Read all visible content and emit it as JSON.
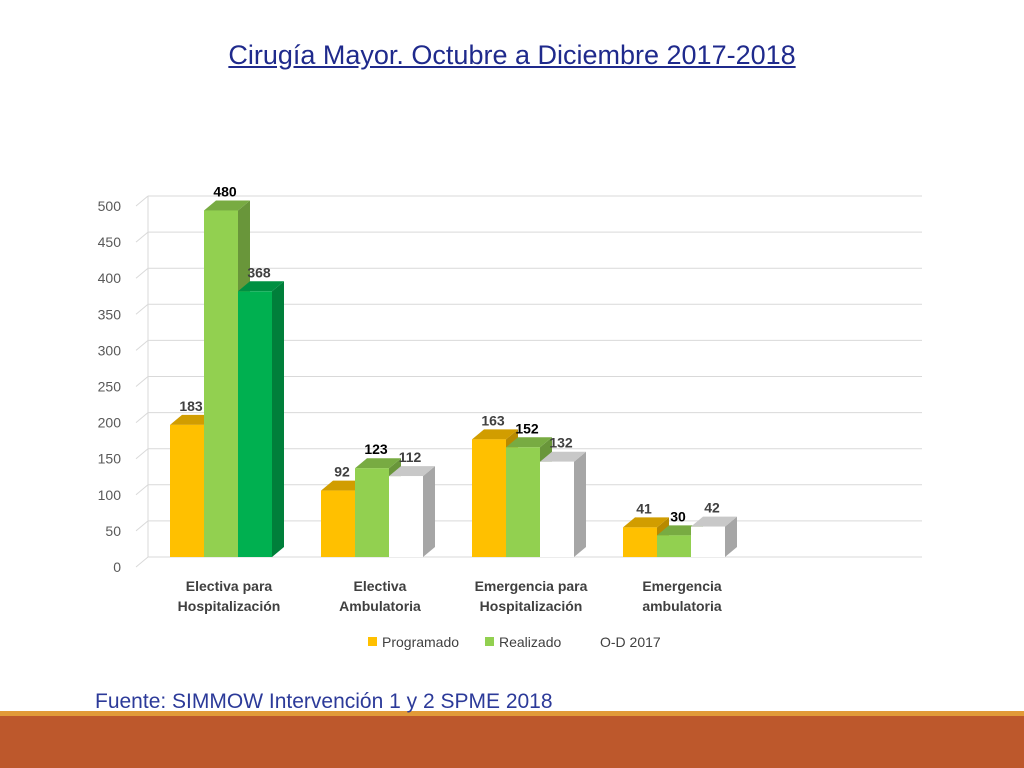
{
  "slide": {
    "title": "Cirugía Mayor. Octubre a Diciembre 2017-2018",
    "source": "Fuente: SIMMOW Intervención 1 y 2  SPME 2018"
  },
  "colors": {
    "programado": "#ffc000",
    "realizado": "#92d050",
    "od_first": "#00b050",
    "od_rest": "#ffffff",
    "title": "#1f2a8c",
    "bar_accent": "#e29a38",
    "bar_main": "#bd582c"
  },
  "chart_data": {
    "type": "bar",
    "title": "",
    "xlabel": "",
    "ylabel": "",
    "categories": [
      [
        "Electiva para",
        "Hospitalización"
      ],
      [
        "Electiva",
        "Ambulatoria"
      ],
      [
        "Emergencia para",
        "Hospitalización"
      ],
      [
        "Emergencia",
        "ambulatoria"
      ]
    ],
    "series": [
      {
        "name": "Programado",
        "values": [
          183,
          92,
          163,
          41
        ]
      },
      {
        "name": "Realizado",
        "values": [
          480,
          123,
          152,
          30
        ]
      },
      {
        "name": "O-D 2017",
        "values": [
          368,
          112,
          132,
          42
        ]
      }
    ],
    "ylim": [
      0,
      500
    ],
    "yticks": [
      0,
      50,
      100,
      150,
      200,
      250,
      300,
      350,
      400,
      450,
      500
    ],
    "grid": true,
    "legend": "bottom",
    "style": "3d-clustered"
  }
}
